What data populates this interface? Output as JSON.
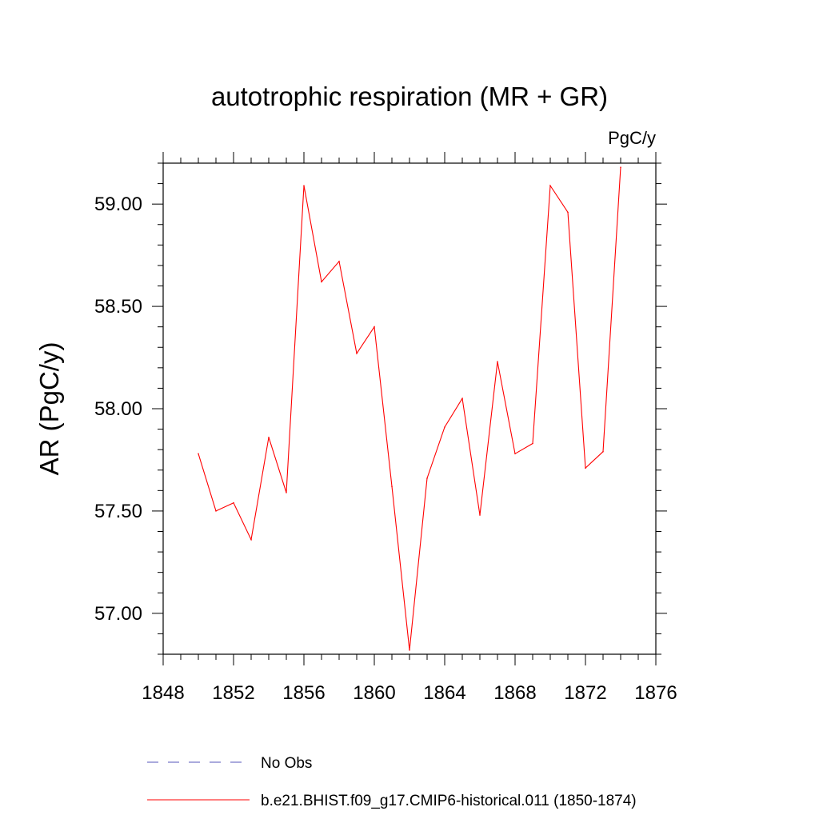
{
  "chart_data": {
    "type": "line",
    "title": "autotrophic respiration (MR + GR)",
    "units": "PgC/y",
    "xlabel": "",
    "ylabel": "AR  (PgC/y)",
    "xlim": [
      1848,
      1876
    ],
    "ylim": [
      56.8,
      59.2
    ],
    "x_ticks": [
      1848,
      1852,
      1856,
      1860,
      1864,
      1868,
      1872,
      1876
    ],
    "x_tick_labels": [
      "1848",
      "1852",
      "1856",
      "1860",
      "1864",
      "1868",
      "1872",
      "1876"
    ],
    "y_ticks": [
      57.0,
      57.5,
      58.0,
      58.5,
      59.0
    ],
    "y_tick_labels": [
      "57.00",
      "57.50",
      "58.00",
      "58.50",
      "59.00"
    ],
    "grid": false,
    "legend_position": "bottom",
    "series": [
      {
        "name": "b.e21.BHIST.f09_g17.CMIP6-historical.011 (1850-1874)",
        "color": "#ff0000",
        "style": "solid",
        "x": [
          1850,
          1851,
          1852,
          1853,
          1854,
          1855,
          1856,
          1857,
          1858,
          1859,
          1860,
          1861,
          1862,
          1863,
          1864,
          1865,
          1866,
          1867,
          1868,
          1869,
          1870,
          1871,
          1872,
          1873,
          1874
        ],
        "values": [
          57.78,
          57.5,
          57.54,
          57.36,
          57.86,
          57.59,
          59.09,
          58.62,
          58.72,
          58.27,
          58.4,
          57.62,
          56.82,
          57.66,
          57.91,
          58.05,
          57.48,
          58.23,
          57.78,
          57.83,
          59.09,
          58.96,
          57.71,
          57.79,
          59.18
        ]
      },
      {
        "name": "No Obs",
        "color": "#5555bb",
        "style": "dashed",
        "x": [],
        "values": []
      }
    ]
  }
}
